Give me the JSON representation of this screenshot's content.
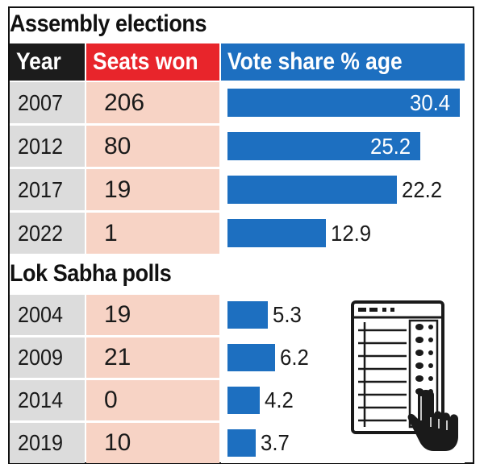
{
  "assembly": {
    "title": "Assembly elections",
    "headers": {
      "year": "Year",
      "seats": "Seats won",
      "vote": "Vote share % age"
    },
    "rows": [
      {
        "year": "2007",
        "seats": "206",
        "vote": "30.4"
      },
      {
        "year": "2012",
        "seats": "80",
        "vote": "25.2"
      },
      {
        "year": "2017",
        "seats": "19",
        "vote": "22.2"
      },
      {
        "year": "2022",
        "seats": "1",
        "vote": "12.9"
      }
    ]
  },
  "loksabha": {
    "title": "Lok Sabha polls",
    "rows": [
      {
        "year": "2004",
        "seats": "19",
        "vote": "5.3"
      },
      {
        "year": "2009",
        "seats": "21",
        "vote": "6.2"
      },
      {
        "year": "2014",
        "seats": "0",
        "vote": "4.2"
      },
      {
        "year": "2019",
        "seats": "10",
        "vote": "3.7"
      }
    ]
  },
  "chart_data": {
    "type": "table",
    "columns": [
      "Year",
      "Seats won",
      "Vote share % age"
    ],
    "sections": [
      {
        "title": "Assembly elections",
        "categories": [
          "2007",
          "2012",
          "2017",
          "2022"
        ],
        "seats_won": [
          206,
          80,
          19,
          1
        ],
        "vote_share": [
          30.4,
          25.2,
          22.2,
          12.9
        ]
      },
      {
        "title": "Lok Sabha polls",
        "categories": [
          "2004",
          "2009",
          "2014",
          "2019"
        ],
        "seats_won": [
          19,
          21,
          0,
          10
        ],
        "vote_share": [
          5.3,
          6.2,
          4.2,
          3.7
        ]
      }
    ],
    "colors": {
      "header_year": "#1c1c1c",
      "header_seats": "#e8252b",
      "header_vote": "#1d6fc0",
      "bar": "#1d6fc0",
      "year_cell": "#dcdcdc",
      "seat_cell": "#f7d3c5"
    },
    "icon": "evm-voting-machine-icon"
  }
}
